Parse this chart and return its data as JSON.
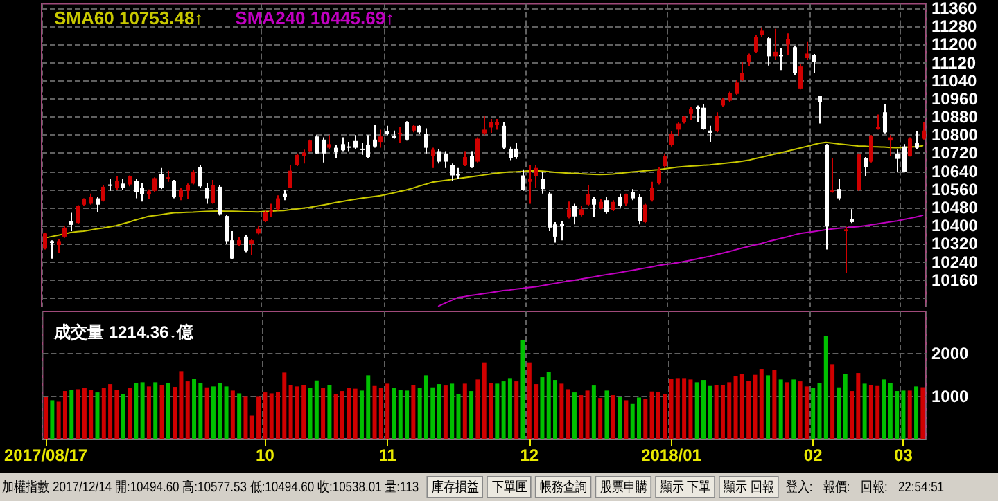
{
  "chart_data": [
    {
      "type": "candlestick",
      "legend": "top left",
      "grid": true,
      "tick_labels": "y",
      "colors": [
        "#d00000",
        "#ffffff",
        "#d00000",
        "#d00000",
        "#ffffff",
        "#d00000",
        "#d00000",
        "#d00000",
        "#ffffff",
        "#d00000",
        "#ffffff",
        "#d00000",
        "#ffffff",
        "#d00000",
        "#ffffff",
        "#ffffff",
        "#d00000",
        "#d00000",
        "#ffffff",
        "#d00000",
        "#ffffff",
        "#d00000",
        "#d00000",
        "#d00000",
        "#ffffff",
        "#ffffff",
        "#d00000",
        "#ffffff",
        "#ffffff",
        "#ffffff",
        "#d00000",
        "#ffffff",
        "#d00000",
        "#d00000",
        "#d00000",
        "#d00000",
        "#d00000",
        "#ffffff",
        "#d00000",
        "#d00000",
        "#d00000",
        "#d00000",
        "#ffffff",
        "#ffffff",
        "#d00000",
        "#ffffff",
        "#ffffff",
        "#ffffff",
        "#ffffff",
        "#ffffff",
        "#ffffff",
        "#ffffff",
        "#d00000",
        "#ffffff",
        "#ffffff",
        "#d00000",
        "#ffffff",
        "#d00000",
        "#ffffff",
        "#ffffff",
        "#d00000",
        "#ffffff",
        "#ffffff",
        "#ffffff",
        "#ffffff",
        "#d00000",
        "#ffffff",
        "#d00000",
        "#d00000",
        "#d00000",
        "#d00000",
        "#ffffff",
        "#ffffff",
        "#ffffff",
        "#ffffff",
        "#d00000",
        "#d00000",
        "#ffffff",
        "#ffffff",
        "#ffffff",
        "#ffffff",
        "#d00000",
        "#ffffff",
        "#d00000",
        "#d00000",
        "#ffffff",
        "#d00000",
        "#ffffff",
        "#d00000",
        "#ffffff",
        "#d00000",
        "#ffffff",
        "#ffffff",
        "#d00000",
        "#d00000",
        "#d00000",
        "#d00000",
        "#d00000",
        "#d00000",
        "#d00000",
        "#d00000",
        "#ffffff",
        "#ffffff",
        "#ffffff",
        "#d00000",
        "#d00000",
        "#d00000",
        "#d00000",
        "#d00000",
        "#d00000",
        "#d00000",
        "#d00000",
        "#ffffff",
        "#d00000",
        "#ffffff",
        "#d00000",
        "#ffffff",
        "#d00000",
        "#d00000",
        "#ffffff",
        "#ffffff",
        "#ffffff",
        "#d00000",
        "#ffffff",
        "#d00000",
        "#ffffff",
        "#d00000",
        "#ffffff",
        "#d00000",
        "#d00000",
        "#ffffff",
        "#d00000",
        "#ffffff",
        "#ffffff",
        "#d00000",
        "#ffffff",
        "#d00000"
      ],
      "categories": [
        "2017/08/17",
        null,
        null,
        null,
        null,
        null,
        null,
        null,
        null,
        null,
        null,
        null,
        null,
        null,
        null,
        null,
        null,
        null,
        null,
        null,
        null,
        null,
        null,
        null,
        null,
        null,
        null,
        null,
        null,
        null,
        null,
        null,
        null,
        null,
        "10",
        null,
        null,
        null,
        null,
        null,
        null,
        null,
        null,
        null,
        null,
        null,
        null,
        null,
        null,
        null,
        null,
        null,
        null,
        "11",
        null,
        null,
        null,
        null,
        null,
        null,
        null,
        null,
        null,
        null,
        null,
        null,
        null,
        null,
        null,
        null,
        null,
        null,
        null,
        null,
        null,
        "12",
        null,
        null,
        null,
        null,
        null,
        null,
        null,
        null,
        null,
        null,
        null,
        null,
        null,
        null,
        null,
        null,
        null,
        null,
        null,
        null,
        null,
        "2018/01",
        null,
        null,
        null,
        null,
        null,
        null,
        null,
        null,
        null,
        null,
        null,
        null,
        null,
        null,
        null,
        null,
        null,
        null,
        null,
        null,
        null,
        "02",
        null,
        null,
        null,
        null,
        null,
        null,
        null,
        null,
        null,
        null,
        null,
        null,
        null,
        "03",
        null,
        null,
        null
      ],
      "ylim": [
        10040,
        11380
      ],
      "yticks": [
        {
          "value": 10080,
          "label": null
        },
        10160,
        10240,
        10320,
        10400,
        10480,
        10560,
        10640,
        10720,
        10800,
        10880,
        10960,
        11040,
        11120,
        11200,
        11280,
        11360
      ],
      "ohlc": [
        [
          10299,
          10370,
          10295,
          10366
        ],
        [
          10332,
          10336,
          10255,
          10324
        ],
        [
          10315,
          10340,
          10279,
          10332
        ],
        [
          10352,
          10400,
          10346,
          10392
        ],
        [
          10420,
          10457,
          10376,
          10404
        ],
        [
          10412,
          10491,
          10408,
          10487
        ],
        [
          10493,
          10521,
          10489,
          10517
        ],
        [
          10497,
          10542,
          10493,
          10528
        ],
        [
          10521,
          10528,
          10461,
          10493
        ],
        [
          10511,
          10578,
          10507,
          10572
        ],
        [
          10582,
          10608,
          10554,
          10578
        ],
        [
          10568,
          10618,
          10558,
          10598
        ],
        [
          10586,
          10608,
          10558,
          10566
        ],
        [
          10582,
          10622,
          10574,
          10618
        ],
        [
          10598,
          10608,
          10521,
          10548
        ],
        [
          10568,
          10588,
          10507,
          10538
        ],
        [
          10540,
          10560,
          10520,
          10552
        ],
        [
          10554,
          10614,
          10550,
          10610
        ],
        [
          10628,
          10655,
          10562,
          10568
        ],
        [
          10606,
          10643,
          10594,
          10614
        ],
        [
          10598,
          10602,
          10521,
          10528
        ],
        [
          10528,
          10568,
          10513,
          10558
        ],
        [
          10554,
          10586,
          10517,
          10578
        ],
        [
          10586,
          10647,
          10582,
          10639
        ],
        [
          10659,
          10669,
          10568,
          10574
        ],
        [
          10568,
          10588,
          10497,
          10521
        ],
        [
          10501,
          10602,
          10497,
          10578
        ],
        [
          10572,
          10578,
          10445,
          10451
        ],
        [
          10443,
          10447,
          10320,
          10332
        ],
        [
          10336,
          10376,
          10251,
          10255
        ],
        [
          10315,
          10352,
          10311,
          10336
        ],
        [
          10352,
          10360,
          10283,
          10291
        ],
        [
          10320,
          10340,
          10271,
          10336
        ],
        [
          10366,
          10400,
          10362,
          10386
        ],
        [
          10420,
          10467,
          10416,
          10461
        ],
        [
          10461,
          10497,
          10437,
          10467
        ],
        [
          10473,
          10534,
          10467,
          10521
        ],
        [
          10542,
          10558,
          10513,
          10526
        ],
        [
          10568,
          10669,
          10566,
          10643
        ],
        [
          10667,
          10719,
          10663,
          10713
        ],
        [
          10707,
          10736,
          10675,
          10723
        ],
        [
          10729,
          10780,
          10725,
          10776
        ],
        [
          10794,
          10800,
          10715,
          10719
        ],
        [
          10780,
          10790,
          10679,
          10719
        ],
        [
          10744,
          10800,
          10740,
          10760
        ],
        [
          10744,
          10756,
          10699,
          10727
        ],
        [
          10760,
          10790,
          10729,
          10733
        ],
        [
          10750,
          10770,
          10729,
          10746
        ],
        [
          10774,
          10800,
          10740,
          10744
        ],
        [
          10740,
          10764,
          10713,
          10736
        ],
        [
          10756,
          10800,
          10699,
          10703
        ],
        [
          10780,
          10845,
          10744,
          10750
        ],
        [
          10770,
          10824,
          10744,
          10794
        ],
        [
          10816,
          10841,
          10800,
          10804
        ],
        [
          10796,
          10820,
          10784,
          10788
        ],
        [
          10804,
          10837,
          10764,
          10810
        ],
        [
          10857,
          10861,
          10776,
          10780
        ],
        [
          10820,
          10845,
          10812,
          10841
        ],
        [
          10841,
          10845,
          10804,
          10812
        ],
        [
          10804,
          10830,
          10719,
          10744
        ],
        [
          10709,
          10744,
          10655,
          10735
        ],
        [
          10729,
          10740,
          10675,
          10683
        ],
        [
          10719,
          10729,
          10655,
          10683
        ],
        [
          10669,
          10675,
          10598,
          10622
        ],
        [
          10628,
          10655,
          10608,
          10622
        ],
        [
          10669,
          10729,
          10663,
          10703
        ],
        [
          10709,
          10729,
          10655,
          10659
        ],
        [
          10683,
          10790,
          10679,
          10784
        ],
        [
          10808,
          10885,
          10800,
          10824
        ],
        [
          10833,
          10871,
          10810,
          10857
        ],
        [
          10845,
          10871,
          10824,
          10857
        ],
        [
          10841,
          10857,
          10740,
          10744
        ],
        [
          10740,
          10750,
          10689,
          10699
        ],
        [
          10740,
          10764,
          10695,
          10703
        ],
        [
          10622,
          10649,
          10554,
          10558
        ],
        [
          10594,
          10669,
          10497,
          10608
        ],
        [
          10618,
          10669,
          10568,
          10655
        ],
        [
          10608,
          10639,
          10542,
          10562
        ],
        [
          10542,
          10548,
          10376,
          10392
        ],
        [
          10406,
          10416,
          10326,
          10352
        ],
        [
          10408,
          10420,
          10336,
          10400
        ],
        [
          10437,
          10507,
          10433,
          10473
        ],
        [
          10487,
          10497,
          10406,
          10441
        ],
        [
          10447,
          10487,
          10441,
          10473
        ],
        [
          10493,
          10578,
          10487,
          10538
        ],
        [
          10517,
          10528,
          10437,
          10493
        ],
        [
          10477,
          10517,
          10473,
          10505
        ],
        [
          10513,
          10528,
          10453,
          10461
        ],
        [
          10469,
          10513,
          10465,
          10505
        ],
        [
          10528,
          10542,
          10481,
          10487
        ],
        [
          10497,
          10542,
          10487,
          10538
        ],
        [
          10548,
          10562,
          10513,
          10521
        ],
        [
          10528,
          10538,
          10406,
          10420
        ],
        [
          10416,
          10497,
          10412,
          10493
        ],
        [
          10513,
          10594,
          10507,
          10568
        ],
        [
          10588,
          10659,
          10582,
          10643
        ],
        [
          10663,
          10719,
          10655,
          10709
        ],
        [
          10756,
          10816,
          10750,
          10804
        ],
        [
          10824,
          10857,
          10796,
          10851
        ],
        [
          10857,
          10885,
          10851,
          10881
        ],
        [
          10893,
          10925,
          10865,
          10917
        ],
        [
          10925,
          10931,
          10857,
          10917
        ],
        [
          10921,
          10938,
          10824,
          10828
        ],
        [
          10820,
          10841,
          10770,
          10810
        ],
        [
          10816,
          10901,
          10812,
          10885
        ],
        [
          10931,
          10966,
          10925,
          10958
        ],
        [
          10952,
          10992,
          10946,
          10986
        ],
        [
          10982,
          11043,
          10978,
          11032
        ],
        [
          11043,
          11123,
          11039,
          11073
        ],
        [
          11123,
          11160,
          11103,
          11154
        ],
        [
          11168,
          11241,
          11164,
          11232
        ],
        [
          11241,
          11275,
          11235,
          11261
        ],
        [
          11228,
          11234,
          11107,
          11148
        ],
        [
          11148,
          11269,
          11134,
          11168
        ],
        [
          11154,
          11184,
          11087,
          11148
        ],
        [
          11200,
          11249,
          11154,
          11224
        ],
        [
          11188,
          11194,
          11067,
          11073
        ],
        [
          11006,
          11113,
          11002,
          11103
        ],
        [
          11140,
          11214,
          11133,
          11160
        ],
        [
          11154,
          11158,
          11073,
          11123
        ],
        [
          10972,
          10972,
          10851,
          10946
        ],
        [
          10756,
          10760,
          10295,
          10400
        ],
        [
          10548,
          10699,
          10546,
          10556
        ],
        [
          10562,
          10608,
          10513,
          10521
        ],
        [
          10376,
          10396,
          10190,
          10384
        ],
        [
          10431,
          10473,
          10412,
          10416
        ],
        [
          10558,
          10719,
          10554,
          10715
        ],
        [
          10699,
          10703,
          10618,
          10659
        ],
        [
          10683,
          10800,
          10679,
          10796
        ],
        [
          10828,
          10891,
          10824,
          10837
        ],
        [
          10901,
          10938,
          10808,
          10812
        ],
        [
          10776,
          10800,
          10709,
          10790
        ],
        [
          10719,
          10736,
          10635,
          10695
        ],
        [
          10750,
          10760,
          10635,
          10639
        ],
        [
          10709,
          10790,
          10705,
          10784
        ],
        [
          10764,
          10816,
          10740,
          10744
        ],
        [
          10784,
          10857,
          10780,
          10820
        ]
      ],
      "series": [
        {
          "name": "SMA60 10753.48↑",
          "type": "line",
          "color": "#c8c800",
          "values": [
            10346,
            10352,
            10358,
            10364,
            10370,
            10374,
            10376,
            10381,
            10386,
            10390,
            10395,
            10400,
            10408,
            10416,
            10425,
            10433,
            10441,
            10445,
            10449,
            10453,
            10457,
            10458,
            10459,
            10460,
            10462,
            10463,
            10464,
            10465,
            10464,
            10464,
            10463,
            10462,
            10462,
            10461,
            10463,
            10464,
            10466,
            10467,
            10471,
            10474,
            10478,
            10481,
            10486,
            10491,
            10496,
            10502,
            10507,
            10512,
            10517,
            10521,
            10525,
            10529,
            10533,
            10539,
            10545,
            10552,
            10558,
            10566,
            10575,
            10583,
            10592,
            10596,
            10600,
            10604,
            10608,
            10612,
            10616,
            10620,
            10624,
            10628,
            10632,
            10635,
            10637,
            10638,
            10640,
            10642,
            10643,
            10641,
            10639,
            10636,
            10634,
            10632,
            10631,
            10630,
            10628,
            10627,
            10626,
            10627,
            10628,
            10631,
            10634,
            10637,
            10640,
            10643,
            10645,
            10647,
            10651,
            10655,
            10659,
            10661,
            10663,
            10665,
            10667,
            10669,
            10672,
            10675,
            10678,
            10681,
            10685,
            10689,
            10696,
            10702,
            10709,
            10716,
            10722,
            10729,
            10736,
            10743,
            10750,
            10757,
            10764,
            10768,
            10765,
            10761,
            10758,
            10755,
            10752,
            10751,
            10749,
            10748,
            10747,
            10745,
            10744,
            10746,
            10747,
            10749,
            10753
          ]
        },
        {
          "name": "SMA240 10445.69↑",
          "type": "line",
          "color": "#c000c0",
          "values": [
            null,
            null,
            null,
            null,
            null,
            null,
            null,
            null,
            null,
            null,
            null,
            null,
            null,
            null,
            null,
            null,
            null,
            null,
            null,
            null,
            null,
            null,
            null,
            null,
            null,
            null,
            null,
            null,
            null,
            null,
            null,
            null,
            null,
            null,
            null,
            null,
            null,
            null,
            null,
            null,
            null,
            null,
            null,
            null,
            null,
            null,
            null,
            null,
            null,
            null,
            null,
            null,
            null,
            null,
            null,
            null,
            null,
            null,
            null,
            null,
            null,
            10045,
            10058,
            10070,
            10083,
            10087,
            10092,
            10096,
            10100,
            10104,
            10109,
            10113,
            10116,
            10120,
            10123,
            10127,
            10130,
            10135,
            10140,
            10145,
            10150,
            10155,
            10159,
            10164,
            10169,
            10174,
            10179,
            10184,
            10188,
            10193,
            10198,
            10203,
            10208,
            10213,
            10218,
            10224,
            10229,
            10232,
            10236,
            10242,
            10247,
            10253,
            10259,
            10265,
            10272,
            10279,
            10286,
            10294,
            10301,
            10308,
            10315,
            10322,
            10330,
            10337,
            10344,
            10351,
            10359,
            10366,
            10370,
            10374,
            10378,
            10382,
            10386,
            10389,
            10391,
            10394,
            10396,
            10400,
            10404,
            10408,
            10413,
            10417,
            10421,
            10427,
            10433,
            10439,
            10446
          ]
        }
      ]
    },
    {
      "type": "bar",
      "title": "成交量 1214.36↓億",
      "grid": true,
      "ylim": [
        0,
        3000
      ],
      "yticks": [
        1000,
        2000
      ],
      "categories": [
        "2017/08/17",
        null,
        null,
        null,
        null,
        null,
        null,
        null,
        null,
        null,
        null,
        null,
        null,
        null,
        null,
        null,
        null,
        null,
        null,
        null,
        null,
        null,
        null,
        null,
        null,
        null,
        null,
        null,
        null,
        null,
        null,
        null,
        null,
        null,
        "10",
        null,
        null,
        null,
        null,
        null,
        null,
        null,
        null,
        null,
        null,
        null,
        null,
        null,
        null,
        null,
        null,
        null,
        null,
        "11",
        null,
        null,
        null,
        null,
        null,
        null,
        null,
        null,
        null,
        null,
        null,
        null,
        null,
        null,
        null,
        null,
        null,
        null,
        null,
        null,
        null,
        "12",
        null,
        null,
        null,
        null,
        null,
        null,
        null,
        null,
        null,
        null,
        null,
        null,
        null,
        null,
        null,
        null,
        null,
        null,
        null,
        null,
        null,
        "2018/01",
        null,
        null,
        null,
        null,
        null,
        null,
        null,
        null,
        null,
        null,
        null,
        null,
        null,
        null,
        null,
        null,
        null,
        null,
        null,
        null,
        null,
        "02",
        null,
        null,
        null,
        null,
        null,
        null,
        null,
        null,
        null,
        null,
        null,
        null,
        null,
        "03",
        null,
        null,
        null
      ],
      "values": [
        993,
        906,
        873,
        1124,
        1156,
        1167,
        1200,
        1156,
        1091,
        1200,
        1287,
        1156,
        1058,
        1200,
        1309,
        1331,
        1233,
        1331,
        1265,
        1309,
        1222,
        1592,
        1352,
        1407,
        1309,
        1211,
        1233,
        1320,
        1233,
        1135,
        1069,
        1004,
        546,
        1004,
        1091,
        1069,
        1102,
        1559,
        1265,
        1233,
        1265,
        1200,
        1374,
        1200,
        1265,
        1058,
        1124,
        1200,
        1180,
        1135,
        1494,
        1243,
        1200,
        1298,
        1200,
        1145,
        1135,
        1265,
        1200,
        1494,
        1211,
        1287,
        1254,
        1298,
        1058,
        1298,
        1124,
        1396,
        1799,
        1309,
        1298,
        1352,
        1429,
        1352,
        2332,
        1799,
        1287,
        1450,
        1581,
        1385,
        1298,
        1167,
        1091,
        1026,
        1135,
        1254,
        960,
        1135,
        1026,
        993,
        906,
        819,
        971,
        938,
        1113,
        1102,
        1047,
        1407,
        1429,
        1429,
        1396,
        1331,
        1385,
        1243,
        1265,
        1265,
        1331,
        1483,
        1526,
        1363,
        1505,
        1646,
        1494,
        1614,
        1396,
        1331,
        1396,
        1352,
        1233,
        1200,
        1309,
        2420,
        1755,
        1211,
        1526,
        1124,
        1548,
        1298,
        1265,
        1243,
        1396,
        1309,
        1124,
        1135,
        1135,
        1233,
        1214
      ],
      "colors": [
        "#d00000",
        "#00c000",
        "#d00000",
        "#d00000",
        "#00c000",
        "#d00000",
        "#d00000",
        "#d00000",
        "#00c000",
        "#d00000",
        "#d00000",
        "#d00000",
        "#00c000",
        "#d00000",
        "#00c000",
        "#00c000",
        "#d00000",
        "#00c000",
        "#d00000",
        "#00c000",
        "#d00000",
        "#d00000",
        "#d00000",
        "#00c000",
        "#00c000",
        "#d00000",
        "#00c000",
        "#00c000",
        "#00c000",
        "#d00000",
        "#00c000",
        "#d00000",
        "#d00000",
        "#d00000",
        "#d00000",
        "#d00000",
        "#d00000",
        "#d00000",
        "#d00000",
        "#d00000",
        "#d00000",
        "#00c000",
        "#00c000",
        "#d00000",
        "#00c000",
        "#d00000",
        "#d00000",
        "#d00000",
        "#d00000",
        "#00c000",
        "#00c000",
        "#d00000",
        "#d00000",
        "#d00000",
        "#00c000",
        "#00c000",
        "#00c000",
        "#d00000",
        "#00c000",
        "#00c000",
        "#00c000",
        "#00c000",
        "#d00000",
        "#00c000",
        "#00c000",
        "#d00000",
        "#00c000",
        "#d00000",
        "#d00000",
        "#d00000",
        "#00c000",
        "#00c000",
        "#00c000",
        "#d00000",
        "#00c000",
        "#d00000",
        "#d00000",
        "#00c000",
        "#00c000",
        "#00c000",
        "#d00000",
        "#d00000",
        "#00c000",
        "#d00000",
        "#d00000",
        "#00c000",
        "#d00000",
        "#00c000",
        "#d00000",
        "#00c000",
        "#d00000",
        "#00c000",
        "#00c000",
        "#d00000",
        "#d00000",
        "#d00000",
        "#d00000",
        "#d00000",
        "#d00000",
        "#d00000",
        "#d00000",
        "#00c000",
        "#00c000",
        "#00c000",
        "#d00000",
        "#d00000",
        "#d00000",
        "#d00000",
        "#d00000",
        "#d00000",
        "#d00000",
        "#d00000",
        "#00c000",
        "#d00000",
        "#00c000",
        "#d00000",
        "#00c000",
        "#d00000",
        "#d00000",
        "#00c000",
        "#00c000",
        "#00c000",
        "#d00000",
        "#00c000",
        "#00c000",
        "#d00000",
        "#d00000",
        "#00c000",
        "#d00000",
        "#d00000",
        "#00c000",
        "#00c000",
        "#00c000",
        "#00c000",
        "#d00000",
        "#00c000",
        "#d00000"
      ],
      "annotations": [
        "加權指數 2017/12/14 開:10494.60 高:10577.53 低:10494.60 收:10538.01 量:113",
        "庫存損益",
        "下單匣",
        "帳務查詢",
        "股票申購",
        "顯示 下單",
        "顯示 回報",
        "登入:",
        "報價:",
        "回報:",
        "22:54:51"
      ]
    }
  ]
}
